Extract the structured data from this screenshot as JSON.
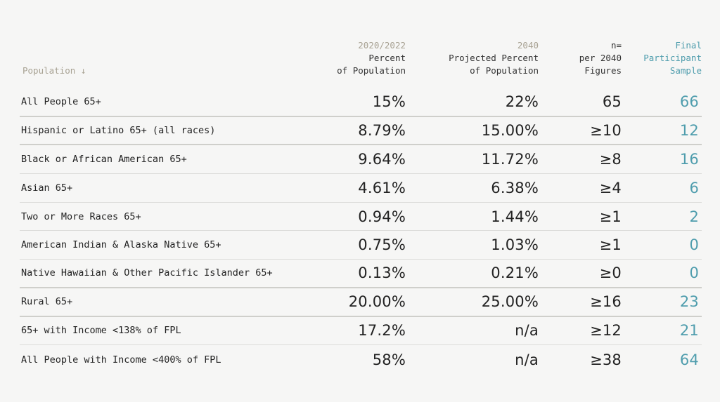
{
  "header": {
    "population": "Population ↓",
    "col1": {
      "year": "2020/2022",
      "line1": "Percent",
      "line2": "of Population"
    },
    "col2": {
      "year": "2040",
      "line1": "Projected Percent",
      "line2": "of Population"
    },
    "col3": {
      "line0": "n=",
      "line1": "per 2040",
      "line2": "Figures"
    },
    "col4": {
      "line0": "Final",
      "line1": "Participant",
      "line2": "Sample"
    }
  },
  "rows": [
    {
      "label": "All People 65+",
      "pct2020": "15%",
      "pct2040": "22%",
      "n": "65",
      "sample": "66"
    },
    {
      "label": "Hispanic or Latino 65+ (all races)",
      "pct2020": "8.79%",
      "pct2040": "15.00%",
      "n": "≥10",
      "sample": "12"
    },
    {
      "label": "Black or African American 65+",
      "pct2020": "9.64%",
      "pct2040": "11.72%",
      "n": "≥8",
      "sample": "16"
    },
    {
      "label": "Asian 65+",
      "pct2020": "4.61%",
      "pct2040": "6.38%",
      "n": "≥4",
      "sample": "6"
    },
    {
      "label": "Two or More Races 65+",
      "pct2020": "0.94%",
      "pct2040": "1.44%",
      "n": "≥1",
      "sample": "2"
    },
    {
      "label": "American Indian & Alaska Native 65+",
      "pct2020": "0.75%",
      "pct2040": "1.03%",
      "n": "≥1",
      "sample": "0"
    },
    {
      "label": "Native Hawaiian & Other Pacific Islander 65+",
      "pct2020": "0.13%",
      "pct2040": "0.21%",
      "n": "≥0",
      "sample": "0"
    },
    {
      "label": "Rural 65+",
      "pct2020": "20.00%",
      "pct2040": "25.00%",
      "n": "≥16",
      "sample": "23"
    },
    {
      "label": "65+ with Income <138% of FPL",
      "pct2020": "17.2%",
      "pct2040": "n/a",
      "n": "≥12",
      "sample": "21"
    },
    {
      "label": "All People with Income <400% of FPL",
      "pct2020": "58%",
      "pct2040": "n/a",
      "n": "≥38",
      "sample": "64"
    }
  ],
  "colors": {
    "accent": "#4f9dad",
    "muted": "#a8a293",
    "background": "#f6f6f5"
  }
}
